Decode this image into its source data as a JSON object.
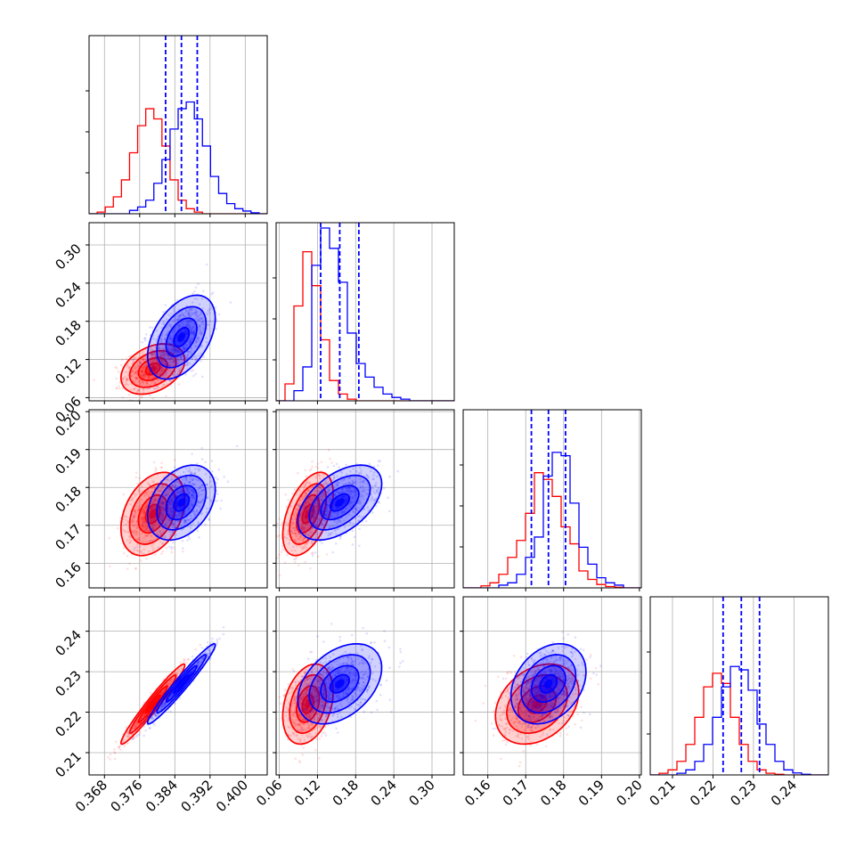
{
  "figure": {
    "type": "corner-plot",
    "params": 4
  },
  "colors": {
    "sample_a": "#0000ff",
    "sample_b": "#ff0000",
    "grid": "#b0b0b0",
    "quantile_line": "#0000ff"
  },
  "chart_data": {
    "type": "corner",
    "grid": true,
    "series": [
      {
        "color": "blue",
        "means": [
          0.3855,
          0.155,
          0.176,
          0.227
        ],
        "sds": [
          0.0035,
          0.03,
          0.0045,
          0.0045
        ],
        "corr": {
          "1,0": 0.45,
          "2,0": 0.35,
          "2,1": 0.5,
          "3,0": 0.97,
          "3,1": 0.4,
          "3,2": 0.3
        }
      },
      {
        "color": "red",
        "means": [
          0.379,
          0.105,
          0.173,
          0.222
        ],
        "sds": [
          0.0033,
          0.018,
          0.005,
          0.0045
        ],
        "corr": {
          "1,0": 0.35,
          "2,0": 0.35,
          "2,1": 0.5,
          "3,0": 0.97,
          "3,1": 0.3,
          "3,2": 0.3
        }
      }
    ],
    "quantiles": [
      [
        0.3819,
        0.3855,
        0.3891
      ],
      [
        0.125,
        0.155,
        0.185
      ],
      [
        0.1715,
        0.176,
        0.1805
      ],
      [
        0.2225,
        0.227,
        0.2315
      ]
    ],
    "param_ranges": [
      [
        0.3645,
        0.405
      ],
      [
        0.055,
        0.335
      ],
      [
        0.1535,
        0.2005
      ],
      [
        0.2045,
        0.2485
      ]
    ],
    "x_ticks": [
      [
        "0.368",
        "0.376",
        "0.384",
        "0.392",
        "0.400"
      ],
      [
        "0.06",
        "0.12",
        "0.18",
        "0.24",
        "0.30"
      ],
      [
        "0.16",
        "0.17",
        "0.18",
        "0.19",
        "0.20"
      ],
      [
        "0.21",
        "0.22",
        "0.23",
        "0.24"
      ]
    ],
    "y_ticks": {
      "1": [
        "0.06",
        "0.12",
        "0.18",
        "0.24",
        "0.30"
      ],
      "2": [
        "0.16",
        "0.17",
        "0.18",
        "0.19",
        "0.20"
      ],
      "3": [
        "0.21",
        "0.22",
        "0.23",
        "0.24"
      ]
    },
    "histograms": {
      "blue": [
        [
          0,
          0,
          0,
          0,
          0,
          1,
          2,
          4,
          9,
          16,
          25,
          31,
          33,
          28,
          20,
          11,
          6,
          3,
          1.5,
          0.8,
          0.3,
          0
        ],
        [
          0,
          0,
          3,
          10,
          40,
          51,
          45,
          35,
          20,
          11,
          7,
          4,
          2,
          1,
          0.5,
          0,
          0,
          0,
          0,
          0
        ],
        [
          0,
          0,
          0,
          0,
          0.8,
          1.5,
          4,
          9,
          15,
          33,
          40,
          39,
          25,
          12,
          7,
          3,
          1.5,
          0.8,
          0,
          0
        ],
        [
          0,
          0,
          0,
          0.5,
          1.5,
          4,
          9,
          17,
          26,
          32,
          31,
          25,
          15,
          9,
          4,
          1.5,
          0.6,
          0.2,
          0,
          0
        ]
      ],
      "red": [
        [
          0,
          0.5,
          2,
          5,
          10,
          18,
          26,
          31,
          28,
          20,
          10,
          4,
          1.5,
          0.5,
          0,
          0,
          0,
          0,
          0,
          0,
          0,
          0
        ],
        [
          0,
          5,
          28,
          44,
          34,
          18,
          6,
          2,
          0.5,
          0,
          0,
          0,
          0,
          0,
          0,
          0,
          0,
          0,
          0,
          0
        ],
        [
          0,
          0,
          0.6,
          1.5,
          4,
          9,
          14,
          22,
          34,
          32,
          27,
          18,
          13,
          5,
          2.5,
          1,
          0.4,
          0.2,
          0,
          0
        ],
        [
          0,
          0.5,
          1.5,
          4,
          9,
          17,
          26,
          30,
          27,
          17,
          9,
          4,
          1.5,
          0.5,
          0.2,
          0,
          0,
          0,
          0,
          0
        ]
      ]
    }
  }
}
